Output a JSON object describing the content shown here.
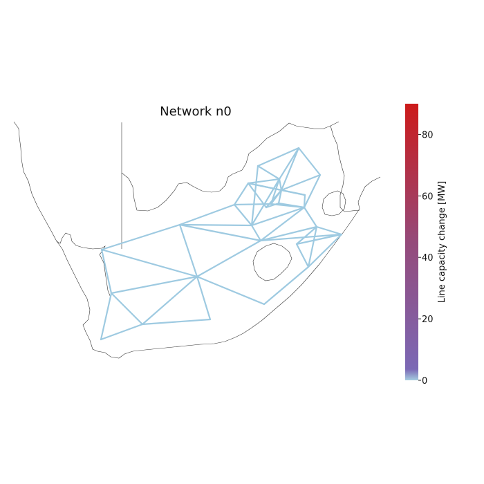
{
  "title": "Network n0",
  "colorbar": {
    "label": "Line capacity change [MW]",
    "min": 0,
    "max": 90,
    "ticks": [
      0,
      20,
      40,
      60,
      80
    ],
    "colors": [
      "#a6cde0",
      "#7b68b5",
      "#a5364f",
      "#cc1a1a"
    ]
  },
  "network": {
    "line_color": "#9ecae1",
    "coast_color": "#333333",
    "line_capacity_change_mw": 0
  }
}
